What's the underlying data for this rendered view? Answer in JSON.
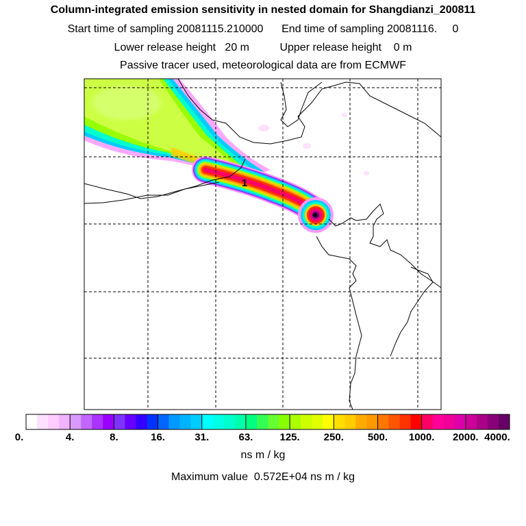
{
  "header": {
    "title": "Column-integrated emission sensitivity in nested domain for Shangdianzi_200811",
    "line2": "Start time of sampling 20081115.210000      End time of sampling 20081116.     0",
    "line3": "Lower release height   20 m          Upper release height    0 m",
    "line4": "Passive tracer used, meteorological data are from ECMWF"
  },
  "map": {
    "receptor_label": "1",
    "gridlines": "dashed",
    "plume_colors": [
      "#ff99ff",
      "#9933ff",
      "#00ccff",
      "#00ffcc",
      "#99ff00",
      "#ccff00",
      "#ffcc00",
      "#ff9900",
      "#ff3300",
      "#ff0066",
      "#660066"
    ]
  },
  "colorbar": {
    "ticks": [
      "0.",
      "4.",
      "8.",
      "16.",
      "31.",
      "63.",
      "125.",
      "250.",
      "500.",
      "1000.",
      "2000.",
      "4000."
    ],
    "colors": [
      "#ffffff",
      "#ffe0ff",
      "#ffccff",
      "#f0b3ff",
      "#d99aff",
      "#c266ff",
      "#aa33ff",
      "#9900ff",
      "#7f33ff",
      "#6600ff",
      "#3300ff",
      "#0033ff",
      "#0066ff",
      "#0099ff",
      "#00b3ff",
      "#00ccff",
      "#00ffff",
      "#00ffe5",
      "#00ffcc",
      "#00ffaa",
      "#00ff80",
      "#33ff55",
      "#66ff33",
      "#88ff00",
      "#aaff00",
      "#ccff00",
      "#e0ff00",
      "#ffff00",
      "#ffdd00",
      "#ffcc00",
      "#ffaa00",
      "#ff9900",
      "#ff7700",
      "#ff5500",
      "#ff3300",
      "#ff0000",
      "#ff0066",
      "#ff0099",
      "#ee0099",
      "#dd00aa",
      "#cc0099",
      "#aa0088",
      "#880077",
      "#660066"
    ],
    "units": "ns m / kg"
  },
  "footer": {
    "max_value": "Maximum value  0.572E+04 ns m / kg"
  }
}
